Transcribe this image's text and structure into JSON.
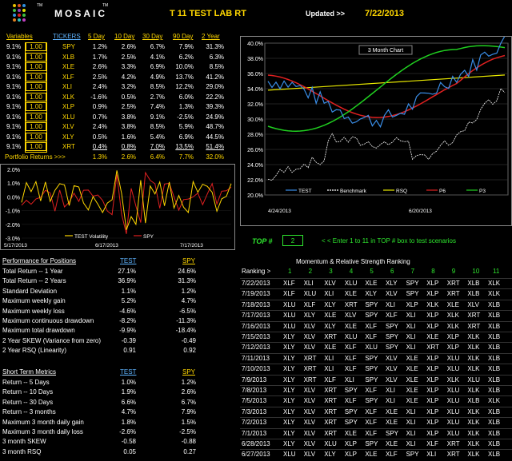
{
  "header": {
    "logo_text": "MOSAIC",
    "title": "T 11  TEST LAB RT",
    "updated_label": "Updated >>",
    "updated_date": "7/22/2013"
  },
  "variables_table": {
    "headers": [
      "Variables",
      "TICKERS",
      "5 Day",
      "10 Day",
      "30 Day",
      "90 Day",
      "2 Year"
    ],
    "rows": [
      {
        "variable": "9.1%",
        "weight": "1.00",
        "ticker": "SPY",
        "d5": "1.2%",
        "d10": "2.6%",
        "d30": "6.7%",
        "d90": "7.9%",
        "y2": "31.3%"
      },
      {
        "variable": "9.1%",
        "weight": "1.00",
        "ticker": "XLB",
        "d5": "1.7%",
        "d10": "2.5%",
        "d30": "4.1%",
        "d90": "6.2%",
        "y2": "6.3%"
      },
      {
        "variable": "9.1%",
        "weight": "1.00",
        "ticker": "XLE",
        "d5": "2.6%",
        "d10": "3.3%",
        "d30": "6.9%",
        "d90": "10.0%",
        "y2": "8.5%"
      },
      {
        "variable": "9.1%",
        "weight": "1.00",
        "ticker": "XLF",
        "d5": "2.5%",
        "d10": "4.2%",
        "d30": "4.9%",
        "d90": "13.7%",
        "y2": "41.2%"
      },
      {
        "variable": "9.1%",
        "weight": "1.00",
        "ticker": "XLI",
        "d5": "2.4%",
        "d10": "3.2%",
        "d30": "8.5%",
        "d90": "12.2%",
        "y2": "29.0%"
      },
      {
        "variable": "9.1%",
        "weight": "1.00",
        "ticker": "XLK",
        "d5": "-1.6%",
        "d10": "0.5%",
        "d30": "2.7%",
        "d90": "6.0%",
        "y2": "22.2%"
      },
      {
        "variable": "9.1%",
        "weight": "1.00",
        "ticker": "XLP",
        "d5": "0.9%",
        "d10": "2.5%",
        "d30": "7.4%",
        "d90": "1.3%",
        "y2": "39.3%"
      },
      {
        "variable": "9.1%",
        "weight": "1.00",
        "ticker": "XLU",
        "d5": "0.7%",
        "d10": "3.8%",
        "d30": "9.1%",
        "d90": "-2.5%",
        "y2": "24.9%"
      },
      {
        "variable": "9.1%",
        "weight": "1.00",
        "ticker": "XLV",
        "d5": "2.4%",
        "d10": "3.8%",
        "d30": "8.5%",
        "d90": "5.9%",
        "y2": "48.7%"
      },
      {
        "variable": "9.1%",
        "weight": "1.00",
        "ticker": "XLY",
        "d5": "0.5%",
        "d10": "1.6%",
        "d30": "5.4%",
        "d90": "6.9%",
        "y2": "44.5%"
      },
      {
        "variable": "9.1%",
        "weight": "1.00",
        "ticker": "XRT",
        "d5": "0.4%",
        "d10": "0.8%",
        "d30": "7.0%",
        "d90": "13.5%",
        "y2": "51.4%"
      }
    ],
    "portfolio_label": "Portfolio Returns >>>",
    "portfolio": {
      "d5": "1.3%",
      "d10": "2.6%",
      "d30": "6.4%",
      "d90": "7.7%",
      "y2": "32.0%"
    }
  },
  "top_chart": {
    "title": "3 Month Chart",
    "y_ticks": [
      "40.0%",
      "38.0%",
      "36.0%",
      "34.0%",
      "32.0%",
      "30.0%",
      "28.0%",
      "26.0%",
      "24.0%",
      "22.0%",
      "20.0%"
    ],
    "x_labels": [
      "4/24/2013",
      "6/20/2013"
    ],
    "legend": [
      {
        "name": "TEST",
        "color": "#3a8ee8"
      },
      {
        "name": "Benchmark",
        "color": "#ffffff"
      },
      {
        "name": "RSQ",
        "color": "#e8e800"
      },
      {
        "name": "P6",
        "color": "#e02020"
      },
      {
        "name": "P3",
        "color": "#20d020"
      }
    ]
  },
  "small_chart": {
    "y_ticks": [
      "2.0%",
      "1.0%",
      "0.0%",
      "-1.0%",
      "-2.0%",
      "-3.0%"
    ],
    "x_labels": [
      "5/17/2013",
      "6/17/2013",
      "7/17/2013"
    ],
    "legend": [
      {
        "name": "TEST Volatility",
        "color": "#ffd700"
      },
      {
        "name": "SPY",
        "color": "#e02020"
      }
    ]
  },
  "top_control": {
    "label": "TOP #",
    "value": "2",
    "hint": "< < Enter 1 to 11 in TOP # box to test scenarios"
  },
  "performance": {
    "title": "Performance for Positions",
    "col_test": "TEST",
    "col_spy": "SPY",
    "rows": [
      {
        "label": "Total Return -- 1 Year",
        "test": "27.1%",
        "spy": "24.6%"
      },
      {
        "label": "Total Return -- 2 Years",
        "test": "36.9%",
        "spy": "31.3%"
      },
      {
        "label": "Standard Deviation",
        "test": "1.1%",
        "spy": "1.2%"
      },
      {
        "label": "Maximum weekly gain",
        "test": "5.2%",
        "spy": "4.7%"
      },
      {
        "label": "Maximum weekly loss",
        "test": "-4.6%",
        "spy": "-6.5%"
      },
      {
        "label": "Maximum continuous drawdown",
        "test": "-8.2%",
        "spy": "-11.3%"
      },
      {
        "label": "Maximum total drawdown",
        "test": "-9.9%",
        "spy": "-18.4%"
      },
      {
        "label": "2 Year SKEW  (Variance from zero)",
        "test": "-0.39",
        "spy": "-0.49"
      },
      {
        "label": "2 Year RSQ (Linearity)",
        "test": "0.91",
        "spy": "0.92"
      }
    ]
  },
  "short_term": {
    "title": "Short Term Metrics",
    "col_test": "TEST",
    "col_spy": "SPY",
    "rows": [
      {
        "label": "Return -- 5 Days",
        "test": "1.0%",
        "spy": "1.2%"
      },
      {
        "label": "Return -- 10 Days",
        "test": "1.9%",
        "spy": "2.6%"
      },
      {
        "label": "Return -- 30 Days",
        "test": "6.6%",
        "spy": "6.7%"
      },
      {
        "label": "Return -- 3 months",
        "test": "4.7%",
        "spy": "7.9%"
      },
      {
        "label": "Maximum 3 month daily gain",
        "test": "1.8%",
        "spy": "1.5%"
      },
      {
        "label": "Maximum 3 month daily loss",
        "test": "-2.6%",
        "spy": "-2.5%"
      },
      {
        "label": "3 month SKEW",
        "test": "-0.58",
        "spy": "-0.88"
      },
      {
        "label": "3 month RSQ",
        "test": "0.05",
        "spy": "0.27"
      }
    ]
  },
  "momentum": {
    "title": "Momentum & Relative Strength Ranking",
    "ranking_label": "Ranking >",
    "rank_numbers": [
      "1",
      "2",
      "3",
      "4",
      "5",
      "6",
      "7",
      "8",
      "9",
      "10",
      "11"
    ],
    "rows": [
      {
        "date": "7/22/2013",
        "tickers": [
          "XLF",
          "XLI",
          "XLV",
          "XLU",
          "XLE",
          "XLY",
          "SPY",
          "XLP",
          "XRT",
          "XLB",
          "XLK"
        ]
      },
      {
        "date": "7/19/2013",
        "tickers": [
          "XLF",
          "XLU",
          "XLI",
          "XLE",
          "XLY",
          "XLV",
          "SPY",
          "XLP",
          "XRT",
          "XLB",
          "XLK"
        ]
      },
      {
        "date": "7/18/2013",
        "tickers": [
          "XLU",
          "XLF",
          "XLY",
          "XRT",
          "SPY",
          "XLI",
          "XLP",
          "XLK",
          "XLE",
          "XLV",
          "XLB"
        ]
      },
      {
        "date": "7/17/2013",
        "tickers": [
          "XLU",
          "XLY",
          "XLE",
          "XLV",
          "SPY",
          "XLF",
          "XLI",
          "XLP",
          "XLK",
          "XRT",
          "XLB"
        ]
      },
      {
        "date": "7/16/2013",
        "tickers": [
          "XLU",
          "XLV",
          "XLY",
          "XLE",
          "XLF",
          "SPY",
          "XLI",
          "XLP",
          "XLK",
          "XRT",
          "XLB"
        ]
      },
      {
        "date": "7/15/2013",
        "tickers": [
          "XLY",
          "XLV",
          "XRT",
          "XLU",
          "XLF",
          "SPY",
          "XLI",
          "XLE",
          "XLP",
          "XLK",
          "XLB"
        ]
      },
      {
        "date": "7/12/2013",
        "tickers": [
          "XLY",
          "XLV",
          "XLE",
          "XLF",
          "XLU",
          "SPY",
          "XLI",
          "XRT",
          "XLP",
          "XLK",
          "XLB"
        ]
      },
      {
        "date": "7/11/2013",
        "tickers": [
          "XLY",
          "XRT",
          "XLI",
          "XLF",
          "SPY",
          "XLV",
          "XLE",
          "XLP",
          "XLU",
          "XLK",
          "XLB"
        ]
      },
      {
        "date": "7/10/2013",
        "tickers": [
          "XLY",
          "XRT",
          "XLI",
          "XLF",
          "SPY",
          "XLV",
          "XLE",
          "XLP",
          "XLU",
          "XLK",
          "XLB"
        ]
      },
      {
        "date": "7/9/2013",
        "tickers": [
          "XLY",
          "XRT",
          "XLF",
          "XLI",
          "SPY",
          "XLV",
          "XLE",
          "XLP",
          "XLK",
          "XLU",
          "XLB"
        ]
      },
      {
        "date": "7/8/2013",
        "tickers": [
          "XLY",
          "XLV",
          "XRT",
          "SPY",
          "XLF",
          "XLI",
          "XLE",
          "XLP",
          "XLU",
          "XLK",
          "XLB"
        ]
      },
      {
        "date": "7/5/2013",
        "tickers": [
          "XLY",
          "XLV",
          "XRT",
          "XLF",
          "SPY",
          "XLI",
          "XLE",
          "XLP",
          "XLU",
          "XLB",
          "XLK"
        ]
      },
      {
        "date": "7/3/2013",
        "tickers": [
          "XLY",
          "XLV",
          "XRT",
          "SPY",
          "XLF",
          "XLE",
          "XLI",
          "XLP",
          "XLU",
          "XLK",
          "XLB"
        ]
      },
      {
        "date": "7/2/2013",
        "tickers": [
          "XLY",
          "XLV",
          "XRT",
          "SPY",
          "XLF",
          "XLE",
          "XLI",
          "XLP",
          "XLU",
          "XLK",
          "XLB"
        ]
      },
      {
        "date": "7/1/2013",
        "tickers": [
          "XLY",
          "XLV",
          "XRT",
          "XLE",
          "XLF",
          "SPY",
          "XLI",
          "XLP",
          "XLU",
          "XLK",
          "XLB"
        ]
      },
      {
        "date": "6/28/2013",
        "tickers": [
          "XLY",
          "XLV",
          "XLU",
          "XLP",
          "SPY",
          "XLE",
          "XLI",
          "XLF",
          "XRT",
          "XLK",
          "XLB"
        ]
      },
      {
        "date": "6/27/2013",
        "tickers": [
          "XLU",
          "XLV",
          "XLY",
          "XLP",
          "XLE",
          "XLF",
          "SPY",
          "XLI",
          "XRT",
          "XLK",
          "XLB"
        ]
      }
    ]
  }
}
